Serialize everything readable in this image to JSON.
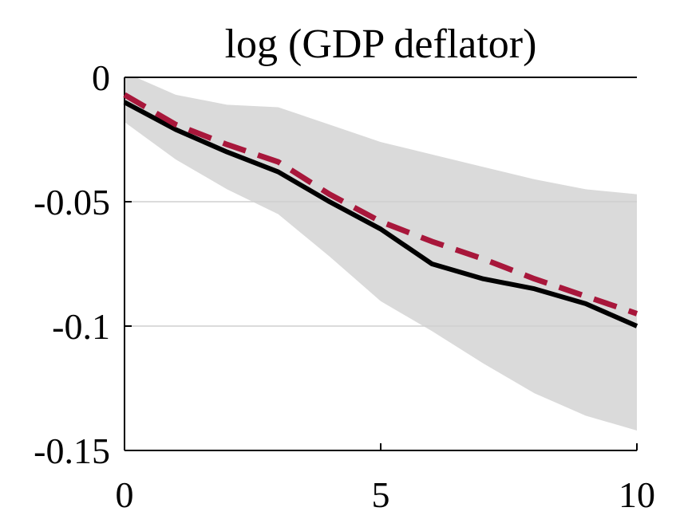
{
  "chart_data": {
    "type": "line",
    "title": "log (GDP deflator)",
    "xlabel": "",
    "ylabel": "",
    "xlim": [
      0,
      10
    ],
    "ylim": [
      -0.15,
      0
    ],
    "x_ticks": [
      0,
      5,
      10
    ],
    "x_tick_labels": [
      "0",
      "5",
      "10"
    ],
    "y_ticks": [
      0,
      -0.05,
      -0.1,
      -0.15
    ],
    "y_tick_labels": [
      "0",
      "-0.05",
      "-0.1",
      "-0.15"
    ],
    "grid": "horizontal",
    "x": [
      0,
      1,
      2,
      3,
      4,
      5,
      6,
      7,
      8,
      9,
      10
    ],
    "band": {
      "upper": [
        0.002,
        -0.007,
        -0.011,
        -0.012,
        -0.019,
        -0.026,
        -0.031,
        -0.036,
        -0.041,
        -0.045,
        -0.047
      ],
      "lower": [
        -0.018,
        -0.033,
        -0.045,
        -0.055,
        -0.072,
        -0.09,
        -0.102,
        -0.115,
        -0.127,
        -0.136,
        -0.142
      ],
      "color": "#dadada"
    },
    "series": [
      {
        "style": "solid",
        "color": "#000000",
        "values": [
          -0.01,
          -0.021,
          -0.03,
          -0.038,
          -0.05,
          -0.061,
          -0.075,
          -0.081,
          -0.085,
          -0.091,
          -0.1
        ]
      },
      {
        "style": "dashed",
        "color": "#a8173b",
        "values": [
          -0.007,
          -0.019,
          -0.027,
          -0.034,
          -0.047,
          -0.058,
          -0.066,
          -0.073,
          -0.081,
          -0.088,
          -0.095
        ]
      }
    ]
  }
}
